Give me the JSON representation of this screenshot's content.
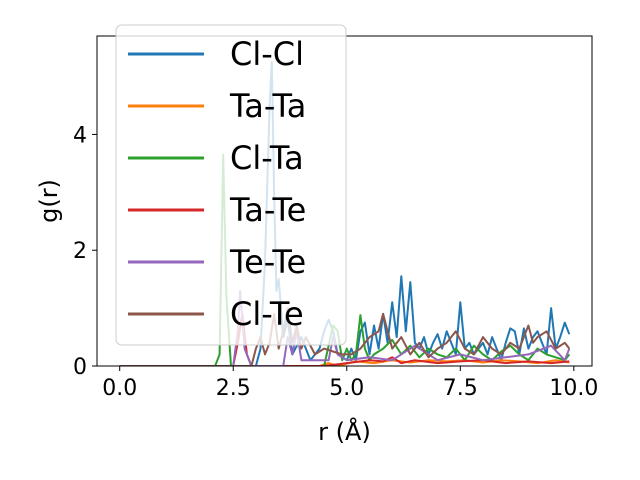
{
  "chart_data": {
    "type": "line",
    "xlabel": "r (Å)",
    "ylabel": "g(r)",
    "xlim": [
      -0.5,
      10.4
    ],
    "ylim": [
      0,
      5.7
    ],
    "xticks": [
      0.0,
      2.5,
      5.0,
      7.5,
      10.0
    ],
    "xtick_labels": [
      "0.0",
      "2.5",
      "5.0",
      "7.5",
      "10.0"
    ],
    "yticks": [
      0,
      2,
      4
    ],
    "ytick_labels": [
      "0",
      "2",
      "4"
    ],
    "legend_position": "upper-left",
    "series": [
      {
        "name": "Cl-Cl",
        "color": "#1f77b4",
        "x": [
          0,
          3.0,
          3.1,
          3.2,
          3.3,
          3.35,
          3.4,
          3.45,
          3.5,
          3.6,
          3.7,
          3.8,
          4.0,
          4.2,
          4.4,
          4.5,
          4.6,
          4.7,
          4.8,
          5.0,
          5.1,
          5.2,
          5.3,
          5.4,
          5.5,
          5.6,
          5.7,
          5.8,
          5.9,
          6.0,
          6.1,
          6.2,
          6.3,
          6.4,
          6.5,
          6.6,
          6.7,
          6.8,
          6.9,
          7.0,
          7.1,
          7.2,
          7.3,
          7.4,
          7.5,
          7.6,
          7.7,
          7.8,
          7.9,
          8.0,
          8.1,
          8.2,
          8.3,
          8.4,
          8.5,
          8.6,
          8.7,
          8.8,
          8.9,
          9.0,
          9.1,
          9.2,
          9.3,
          9.4,
          9.5,
          9.6,
          9.7,
          9.8,
          9.9
        ],
        "y": [
          0,
          0,
          0.3,
          1.8,
          4.5,
          5.25,
          3.0,
          1.3,
          1.5,
          0.5,
          0.8,
          0.2,
          0.5,
          0.1,
          0.3,
          0.6,
          0.8,
          0.6,
          0.2,
          0.1,
          0.3,
          0.1,
          0.6,
          0.75,
          0.2,
          0.7,
          0.3,
          0.9,
          0.4,
          1.1,
          0.5,
          1.55,
          0.6,
          1.45,
          0.4,
          0.3,
          0.5,
          0.2,
          0.4,
          0.55,
          0.3,
          0.6,
          0.4,
          0.2,
          1.1,
          0.3,
          0.4,
          0.2,
          0.3,
          0.4,
          0.2,
          0.5,
          0.3,
          0.1,
          0.4,
          0.65,
          0.6,
          0.2,
          0.65,
          0.3,
          0.5,
          0.6,
          0.4,
          0.2,
          1.0,
          0.3,
          0.5,
          0.75,
          0.55
        ]
      },
      {
        "name": "Ta-Ta",
        "color": "#ff7f0e",
        "x": [
          0,
          4.4,
          4.6,
          4.8,
          5.2,
          5.6,
          6.0,
          6.4,
          6.8,
          7.2,
          7.6,
          8.0,
          8.4,
          8.8,
          9.2,
          9.6,
          9.9
        ],
        "y": [
          0,
          0,
          0.05,
          0,
          0.08,
          0.05,
          0.1,
          0.06,
          0.1,
          0.08,
          0.1,
          0.06,
          0.1,
          0.08,
          0.05,
          0.1,
          0.06
        ]
      },
      {
        "name": "Cl-Ta",
        "color": "#2ca02c",
        "x": [
          0,
          2.1,
          2.2,
          2.28,
          2.35,
          2.45,
          2.6,
          4.5,
          4.7,
          4.8,
          4.9,
          5.0,
          5.1,
          5.2,
          5.3,
          5.4,
          5.5,
          5.6,
          5.8,
          6.0,
          6.2,
          6.4,
          6.6,
          6.8,
          7.0,
          7.2,
          7.4,
          7.6,
          7.8,
          8.0,
          8.2,
          8.4,
          8.6,
          8.8,
          9.0,
          9.2,
          9.4,
          9.6,
          9.8,
          9.9
        ],
        "y": [
          0,
          0,
          0.2,
          3.65,
          1.2,
          0,
          0,
          0,
          0.7,
          0.6,
          0.1,
          0.3,
          0.1,
          0.2,
          0.88,
          0.3,
          0.1,
          0.2,
          0.3,
          0.45,
          0.2,
          0.35,
          0.15,
          0.3,
          0.2,
          0.15,
          0.3,
          0.1,
          0.35,
          0.2,
          0.1,
          0.25,
          0.35,
          0.2,
          0.1,
          0.3,
          0.2,
          0.15,
          0.1,
          0.2
        ]
      },
      {
        "name": "Ta-Te",
        "color": "#d62728",
        "x": [
          0,
          2.5,
          2.6,
          2.7,
          2.8,
          2.9,
          3.0,
          4.5,
          5.0,
          5.5,
          5.8,
          6.0,
          6.2,
          6.5,
          7.0,
          7.5,
          8.0,
          8.5,
          9.0,
          9.5,
          9.9
        ],
        "y": [
          0,
          0,
          0.4,
          0.9,
          0.2,
          0,
          0,
          0,
          0.05,
          0.1,
          0.08,
          0.15,
          0.05,
          0.1,
          0.05,
          0.08,
          0.1,
          0.05,
          0.08,
          0.05,
          0.08
        ]
      },
      {
        "name": "Te-Te",
        "color": "#9467bd",
        "x": [
          0,
          2.5,
          2.6,
          2.65,
          2.75,
          2.9,
          3.6,
          3.7,
          3.8,
          3.9,
          4.0,
          4.6,
          4.7,
          4.8,
          5.0,
          5.5,
          6.0,
          6.5,
          7.0,
          7.5,
          8.0,
          8.5,
          9.0,
          9.5,
          9.8,
          9.9
        ],
        "y": [
          0,
          0,
          0.6,
          1.3,
          0.3,
          0,
          0,
          0.5,
          0.2,
          0.6,
          0.1,
          0.1,
          0.5,
          0.2,
          0.1,
          0.15,
          0.1,
          0.35,
          0.1,
          0.2,
          0.1,
          0.15,
          0.2,
          0.35,
          0.1,
          0.3
        ]
      },
      {
        "name": "Cl-Te",
        "color": "#8c564b",
        "x": [
          0,
          2.9,
          3.0,
          3.1,
          3.2,
          3.3,
          3.4,
          3.5,
          3.6,
          3.7,
          3.8,
          3.9,
          4.0,
          4.1,
          4.3,
          4.5,
          4.7,
          4.9,
          5.1,
          5.3,
          5.5,
          5.7,
          5.8,
          5.9,
          6.0,
          6.2,
          6.4,
          6.6,
          6.8,
          7.0,
          7.2,
          7.4,
          7.6,
          7.8,
          8.0,
          8.2,
          8.4,
          8.6,
          8.8,
          9.0,
          9.1,
          9.2,
          9.4,
          9.6,
          9.8,
          9.9
        ],
        "y": [
          0,
          0,
          0.3,
          0.5,
          0.2,
          0.4,
          0.9,
          0.3,
          0.6,
          1.0,
          0.4,
          0.7,
          0.3,
          0.5,
          0.2,
          0.3,
          0.25,
          0.2,
          0.2,
          0.3,
          0.5,
          0.6,
          0.9,
          0.6,
          0.3,
          0.5,
          0.2,
          0.4,
          0.15,
          0.3,
          0.4,
          0.6,
          0.3,
          0.2,
          0.5,
          0.3,
          0.2,
          0.4,
          0.3,
          0.7,
          0.4,
          0.5,
          0.6,
          0.3,
          0.4,
          0.3
        ]
      }
    ]
  }
}
